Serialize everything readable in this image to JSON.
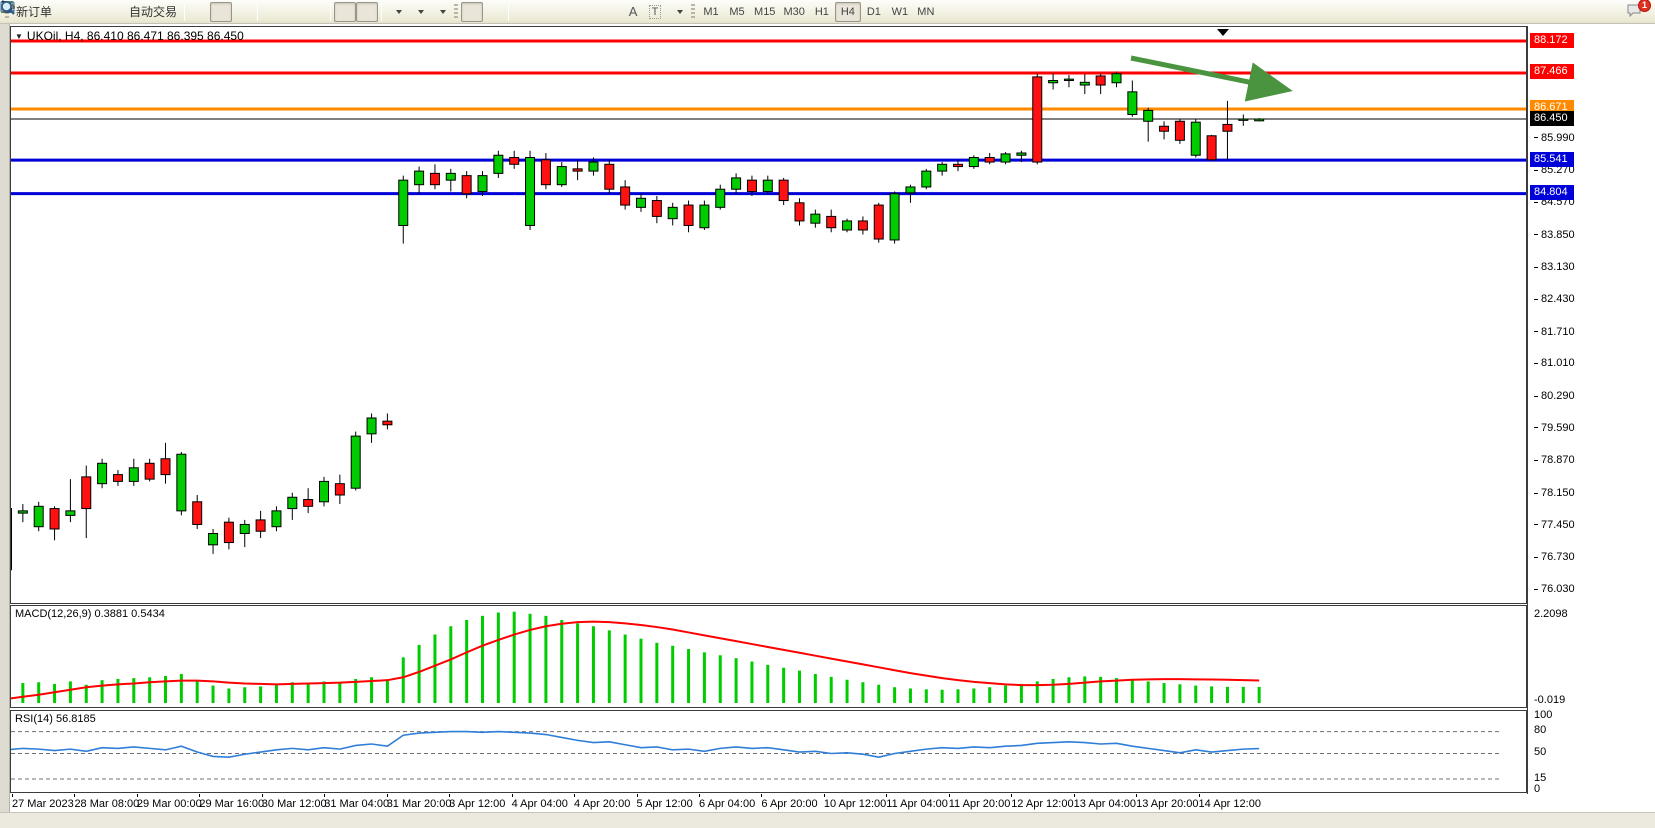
{
  "toolbar": {
    "new_order_label": "新订单",
    "autotrading_label": "自动交易",
    "text_tool_label": "A",
    "label_tool_label": "T",
    "icons": [
      "profile",
      "market-watch",
      "signals",
      "autotrading-folder",
      "bar-chart",
      "candlestick",
      "line-chart",
      "zoom-in",
      "zoom-out",
      "tile-windows",
      "auto-scroll",
      "chart-shift",
      "add-indicator",
      "period-clock",
      "chart-template",
      "cursor",
      "crosshair",
      "vertical-line",
      "horizontal-line",
      "trend-line",
      "equidistant-channel",
      "fibonacci",
      "text",
      "text-label",
      "arrow-tools",
      "search",
      "chat"
    ],
    "timeframes": [
      "M1",
      "M5",
      "M15",
      "M30",
      "H1",
      "H4",
      "D1",
      "W1",
      "MN"
    ],
    "active_timeframe": "H4",
    "notification_count": "1"
  },
  "chart": {
    "title": "UKOil, H4, 86.410 86.471 86.395 86.450",
    "macd_label": "MACD(12,26,9) 0.3881 0.5434",
    "rsi_label": "RSI(14) 56.8185",
    "macd_axis_max": "2.2098",
    "macd_axis_min": "-0.019"
  },
  "chart_data": {
    "type": "candlestick",
    "symbol": "UKOil",
    "period": "H4",
    "title": "UKOil, H4, 86.410 86.471 86.395 86.450",
    "colors": {
      "up": "#00cc00",
      "down": "#ff1111",
      "wick": "#000000",
      "macd_hist": "#00cc00",
      "macd_signal": "#ff0000",
      "rsi_line": "#2f7ed8",
      "arrow": "#4a9440"
    },
    "price_axis_range": [
      76.03,
      88.45
    ],
    "price_ticks": [
      "85.990",
      "85.270",
      "84.570",
      "83.850",
      "83.130",
      "82.430",
      "81.710",
      "81.010",
      "80.290",
      "79.590",
      "78.870",
      "78.150",
      "77.450",
      "76.730",
      "76.030"
    ],
    "levels": [
      {
        "text": "88.172",
        "price": 88.172,
        "color": "#ff0000",
        "thickness": 3
      },
      {
        "text": "87.466",
        "price": 87.466,
        "color": "#ff0000",
        "thickness": 3
      },
      {
        "text": "86.671",
        "price": 86.671,
        "color": "#ff8a00",
        "thickness": 3
      },
      {
        "text": "86.450",
        "price": 86.45,
        "color": "#000000",
        "thickness": 1,
        "current": true
      },
      {
        "text": "85.541",
        "price": 85.541,
        "color": "#0000d8",
        "thickness": 3
      },
      {
        "text": "84.804",
        "price": 84.804,
        "color": "#0000d8",
        "thickness": 3
      }
    ],
    "time_labels": [
      "27 Mar 2023",
      "28 Mar 08:00",
      "29 Mar 00:00",
      "29 Mar 16:00",
      "30 Mar 12:00",
      "31 Mar 04:00",
      "31 Mar 20:00",
      "3 Apr 12:00",
      "4 Apr 04:00",
      "4 Apr 20:00",
      "5 Apr 12:00",
      "6 Apr 04:00",
      "6 Apr 20:00",
      "10 Apr 12:00",
      "11 Apr 04:00",
      "11 Apr 20:00",
      "12 Apr 12:00",
      "13 Apr 04:00",
      "13 Apr 20:00",
      "14 Apr 12:00"
    ],
    "candles": [
      [
        77.85,
        78.1,
        76.45,
        76.5
      ],
      [
        77.75,
        77.95,
        77.55,
        77.8
      ],
      [
        77.45,
        78.0,
        77.35,
        77.9
      ],
      [
        77.85,
        77.9,
        77.15,
        77.4
      ],
      [
        77.7,
        78.5,
        77.55,
        77.8
      ],
      [
        78.55,
        78.8,
        77.2,
        77.85
      ],
      [
        78.4,
        78.95,
        78.3,
        78.85
      ],
      [
        78.6,
        78.7,
        78.35,
        78.45
      ],
      [
        78.45,
        78.95,
        78.35,
        78.75
      ],
      [
        78.85,
        78.95,
        78.45,
        78.5
      ],
      [
        78.95,
        79.3,
        78.4,
        78.6
      ],
      [
        77.8,
        79.1,
        77.7,
        79.05
      ],
      [
        78.0,
        78.15,
        77.4,
        77.5
      ],
      [
        77.05,
        77.4,
        76.85,
        77.3
      ],
      [
        77.55,
        77.65,
        76.95,
        77.1
      ],
      [
        77.3,
        77.6,
        77.0,
        77.5
      ],
      [
        77.6,
        77.8,
        77.2,
        77.35
      ],
      [
        77.45,
        77.9,
        77.35,
        77.8
      ],
      [
        77.85,
        78.2,
        77.6,
        78.1
      ],
      [
        78.05,
        78.3,
        77.75,
        77.9
      ],
      [
        78.0,
        78.55,
        77.9,
        78.45
      ],
      [
        78.4,
        78.6,
        77.95,
        78.15
      ],
      [
        78.3,
        79.55,
        78.25,
        79.45
      ],
      [
        79.5,
        79.95,
        79.3,
        79.85
      ],
      [
        79.78,
        79.95,
        79.6,
        79.7
      ],
      [
        84.1,
        85.2,
        83.7,
        85.1
      ],
      [
        85.0,
        85.4,
        84.8,
        85.3
      ],
      [
        85.25,
        85.45,
        84.9,
        85.0
      ],
      [
        85.1,
        85.35,
        84.85,
        85.25
      ],
      [
        85.2,
        85.3,
        84.7,
        84.8
      ],
      [
        84.85,
        85.3,
        84.75,
        85.2
      ],
      [
        85.25,
        85.75,
        85.15,
        85.65
      ],
      [
        85.6,
        85.75,
        85.35,
        85.45
      ],
      [
        84.1,
        85.75,
        84.0,
        85.6
      ],
      [
        85.55,
        85.7,
        84.9,
        85.0
      ],
      [
        85.0,
        85.5,
        84.95,
        85.4
      ],
      [
        85.35,
        85.55,
        85.1,
        85.3
      ],
      [
        85.3,
        85.6,
        85.2,
        85.5
      ],
      [
        85.45,
        85.55,
        84.8,
        84.9
      ],
      [
        84.95,
        85.1,
        84.45,
        84.55
      ],
      [
        84.5,
        84.8,
        84.4,
        84.7
      ],
      [
        84.65,
        84.75,
        84.15,
        84.3
      ],
      [
        84.25,
        84.6,
        84.1,
        84.5
      ],
      [
        84.55,
        84.65,
        83.95,
        84.1
      ],
      [
        84.05,
        84.65,
        84.0,
        84.55
      ],
      [
        84.5,
        85.0,
        84.45,
        84.9
      ],
      [
        84.9,
        85.25,
        84.8,
        85.15
      ],
      [
        85.1,
        85.2,
        84.75,
        84.85
      ],
      [
        84.85,
        85.2,
        84.8,
        85.1
      ],
      [
        85.1,
        85.15,
        84.55,
        84.65
      ],
      [
        84.6,
        84.7,
        84.1,
        84.2
      ],
      [
        84.15,
        84.45,
        84.05,
        84.35
      ],
      [
        84.3,
        84.45,
        83.95,
        84.05
      ],
      [
        84.0,
        84.25,
        83.95,
        84.2
      ],
      [
        84.2,
        84.3,
        83.9,
        84.0
      ],
      [
        84.55,
        84.6,
        83.72,
        83.8
      ],
      [
        83.78,
        84.85,
        83.7,
        84.8
      ],
      [
        84.82,
        85.0,
        84.6,
        84.95
      ],
      [
        84.95,
        85.35,
        84.9,
        85.3
      ],
      [
        85.3,
        85.5,
        85.2,
        85.45
      ],
      [
        85.45,
        85.55,
        85.3,
        85.4
      ],
      [
        85.4,
        85.65,
        85.35,
        85.6
      ],
      [
        85.6,
        85.7,
        85.45,
        85.5
      ],
      [
        85.5,
        85.72,
        85.45,
        85.68
      ],
      [
        85.65,
        85.75,
        85.5,
        85.7
      ],
      [
        87.38,
        87.45,
        85.45,
        85.5
      ],
      [
        87.25,
        87.45,
        87.1,
        87.3
      ],
      [
        87.3,
        87.42,
        87.15,
        87.33
      ],
      [
        87.2,
        87.44,
        87.0,
        87.26
      ],
      [
        87.4,
        87.45,
        87.0,
        87.2
      ],
      [
        87.25,
        87.5,
        87.15,
        87.45
      ],
      [
        86.55,
        87.3,
        86.5,
        87.05
      ],
      [
        86.4,
        86.7,
        85.95,
        86.64
      ],
      [
        86.29,
        86.4,
        86.0,
        86.18
      ],
      [
        86.4,
        86.45,
        85.9,
        85.98
      ],
      [
        85.65,
        86.45,
        85.6,
        86.38
      ],
      [
        86.08,
        86.1,
        85.54,
        85.55
      ],
      [
        86.33,
        86.85,
        85.55,
        86.18
      ],
      [
        86.42,
        86.55,
        86.3,
        86.45
      ],
      [
        86.41,
        86.471,
        86.395,
        86.45
      ]
    ],
    "indicators": {
      "macd": {
        "label": "MACD(12,26,9) 0.3881 0.5434",
        "axis_max": 2.2098,
        "axis_min": -0.019,
        "histogram": [
          0.45,
          0.48,
          0.5,
          0.46,
          0.52,
          0.44,
          0.55,
          0.58,
          0.6,
          0.62,
          0.65,
          0.7,
          0.55,
          0.42,
          0.35,
          0.38,
          0.4,
          0.45,
          0.5,
          0.48,
          0.52,
          0.5,
          0.58,
          0.62,
          0.55,
          1.1,
          1.4,
          1.65,
          1.85,
          2.0,
          2.1,
          2.18,
          2.2,
          2.15,
          2.1,
          2.0,
          1.92,
          1.85,
          1.75,
          1.65,
          1.55,
          1.45,
          1.38,
          1.3,
          1.22,
          1.15,
          1.08,
          1.0,
          0.92,
          0.85,
          0.78,
          0.7,
          0.63,
          0.56,
          0.5,
          0.44,
          0.38,
          0.35,
          0.33,
          0.32,
          0.33,
          0.35,
          0.38,
          0.42,
          0.46,
          0.52,
          0.58,
          0.62,
          0.64,
          0.63,
          0.6,
          0.56,
          0.52,
          0.48,
          0.45,
          0.42,
          0.4,
          0.39,
          0.39,
          0.3881
        ],
        "signal": [
          0.1,
          0.15,
          0.2,
          0.26,
          0.32,
          0.38,
          0.42,
          0.45,
          0.47,
          0.5,
          0.52,
          0.54,
          0.54,
          0.52,
          0.49,
          0.47,
          0.46,
          0.45,
          0.46,
          0.47,
          0.48,
          0.49,
          0.51,
          0.53,
          0.55,
          0.62,
          0.75,
          0.9,
          1.05,
          1.22,
          1.38,
          1.52,
          1.65,
          1.76,
          1.85,
          1.91,
          1.95,
          1.96,
          1.95,
          1.92,
          1.88,
          1.83,
          1.77,
          1.7,
          1.63,
          1.56,
          1.49,
          1.42,
          1.35,
          1.28,
          1.21,
          1.14,
          1.07,
          1.0,
          0.93,
          0.86,
          0.79,
          0.72,
          0.66,
          0.6,
          0.55,
          0.51,
          0.48,
          0.45,
          0.43,
          0.43,
          0.44,
          0.46,
          0.49,
          0.52,
          0.54,
          0.56,
          0.57,
          0.575,
          0.575,
          0.57,
          0.565,
          0.56,
          0.55,
          0.5434
        ]
      },
      "rsi": {
        "label": "RSI(14) 56.8185",
        "levels": [
          80,
          50,
          15
        ],
        "axis_ticks": [
          "100",
          "80",
          "50",
          "15",
          "0"
        ],
        "values": [
          55,
          57,
          56,
          54,
          56,
          53,
          58,
          57,
          59,
          57,
          55,
          60,
          52,
          46,
          45,
          49,
          52,
          55,
          57,
          55,
          58,
          56,
          61,
          63,
          60,
          75,
          78,
          79,
          80,
          80,
          79,
          80,
          79,
          78,
          76,
          72,
          68,
          65,
          66,
          62,
          58,
          59,
          55,
          56,
          53,
          57,
          59,
          57,
          58,
          55,
          52,
          53,
          50,
          51,
          49,
          45,
          50,
          53,
          56,
          58,
          57,
          59,
          58,
          60,
          61,
          64,
          65,
          66,
          65,
          63,
          64,
          60,
          57,
          54,
          51,
          55,
          52,
          54,
          56,
          56.82
        ]
      }
    },
    "annotation_arrow": {
      "from_price": 87.79,
      "to_price": 87.05,
      "comment": "green down-sloping arrow top right"
    }
  }
}
